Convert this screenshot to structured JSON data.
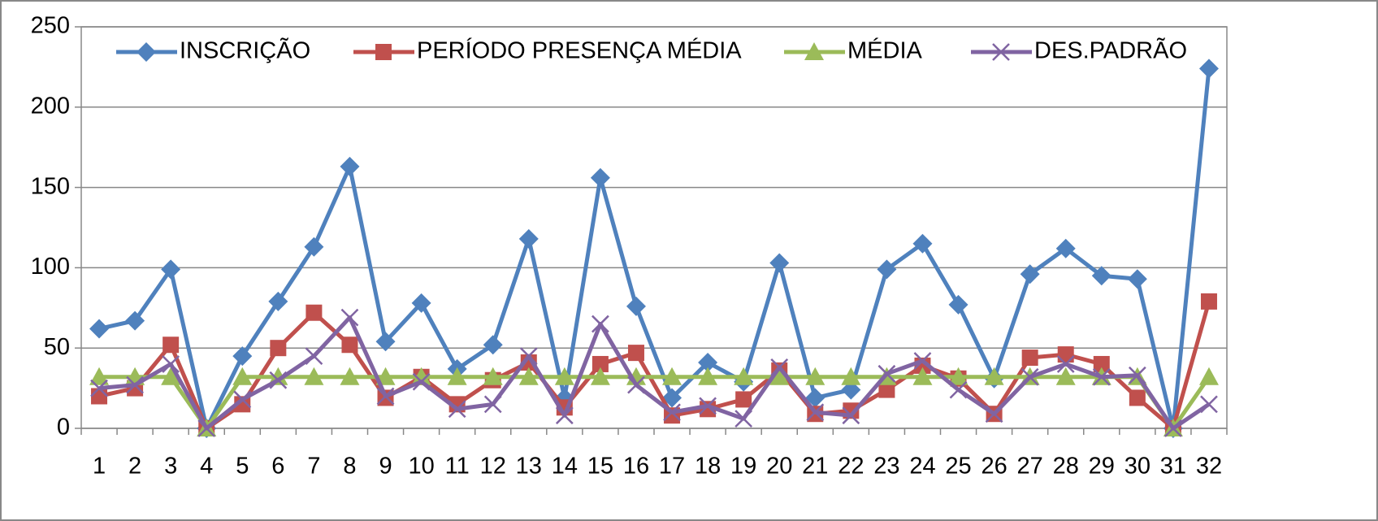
{
  "chart_data": {
    "type": "line",
    "categories": [
      "1",
      "2",
      "3",
      "4",
      "5",
      "6",
      "7",
      "8",
      "9",
      "10",
      "11",
      "12",
      "13",
      "14",
      "15",
      "16",
      "17",
      "18",
      "19",
      "20",
      "21",
      "22",
      "23",
      "24",
      "25",
      "26",
      "27",
      "28",
      "29",
      "30",
      "31",
      "32"
    ],
    "series": [
      {
        "name": "INSCRIÇÃO",
        "color": "#4f81bd",
        "marker": "diamond",
        "values": [
          62,
          67,
          99,
          0,
          45,
          79,
          113,
          163,
          54,
          78,
          37,
          52,
          118,
          19,
          156,
          76,
          19,
          41,
          29,
          103,
          19,
          24,
          99,
          115,
          77,
          31,
          96,
          112,
          95,
          93,
          0,
          224
        ]
      },
      {
        "name": "PERÍODO PRESENÇA MÉDIA",
        "color": "#c0504d",
        "marker": "square",
        "values": [
          20,
          25,
          52,
          0,
          15,
          50,
          72,
          52,
          19,
          32,
          15,
          30,
          41,
          13,
          40,
          47,
          8,
          12,
          18,
          36,
          9,
          11,
          24,
          39,
          31,
          9,
          44,
          46,
          40,
          19,
          0,
          79
        ]
      },
      {
        "name": "MÉDIA",
        "color": "#9bbb59",
        "marker": "triangle",
        "values": [
          32,
          32,
          32,
          0,
          32,
          32,
          32,
          32,
          32,
          32,
          32,
          32,
          32,
          32,
          32,
          32,
          32,
          32,
          32,
          32,
          32,
          32,
          32,
          32,
          32,
          32,
          32,
          32,
          32,
          32,
          0,
          32
        ]
      },
      {
        "name": "DES.PADRÃO",
        "color": "#8064a2",
        "marker": "x",
        "values": [
          25,
          27,
          40,
          0,
          18,
          30,
          45,
          69,
          20,
          29,
          12,
          15,
          45,
          8,
          65,
          27,
          10,
          14,
          6,
          38,
          10,
          8,
          34,
          42,
          24,
          9,
          32,
          40,
          32,
          33,
          0,
          15
        ]
      }
    ],
    "ylim": [
      0,
      250
    ],
    "yticks": [
      0,
      50,
      100,
      150,
      200,
      250
    ],
    "grid": true,
    "legend": "top"
  }
}
